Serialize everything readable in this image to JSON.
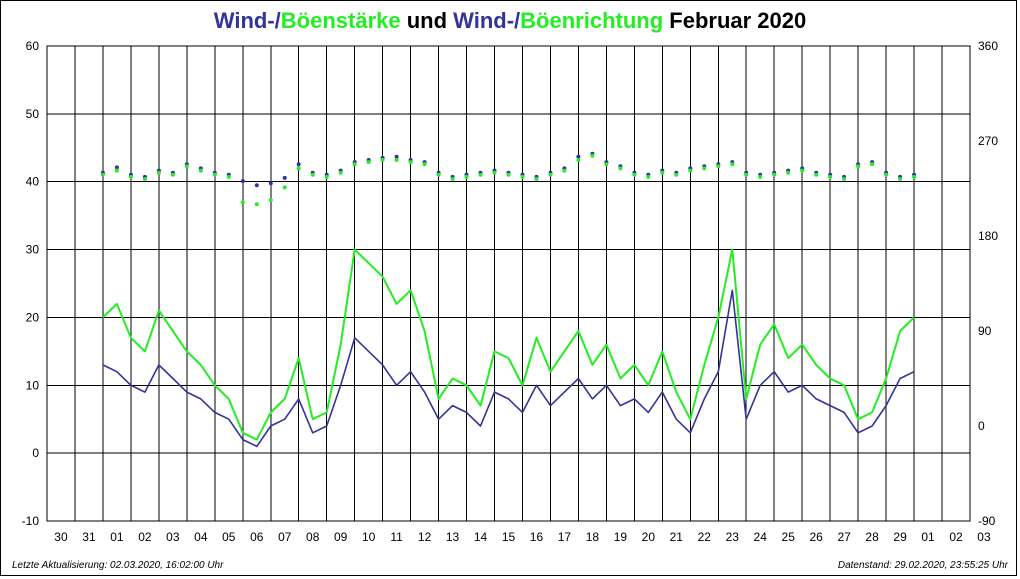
{
  "title": {
    "part1": "Wind-/",
    "part2": "Böenstärke",
    "part3": " und ",
    "part4": "Wind-/",
    "part5": "Böenrichtung",
    "part6": " Februar 2020"
  },
  "footer": {
    "left": "Letzte Aktualisierung: 02.03.2020, 16:02:00 Uhr",
    "right": "Datenstand: 29.02.2020, 23:55:25 Uhr"
  },
  "colors": {
    "wind": "#33339a",
    "gust": "#22ee22",
    "grid": "#000000"
  },
  "chart_data": {
    "type": "line",
    "x_tick_labels": [
      "30",
      "31",
      "01",
      "02",
      "03",
      "04",
      "05",
      "06",
      "07",
      "08",
      "09",
      "10",
      "11",
      "12",
      "13",
      "14",
      "15",
      "16",
      "17",
      "18",
      "19",
      "20",
      "21",
      "22",
      "23",
      "24",
      "25",
      "26",
      "27",
      "28",
      "29",
      "01",
      "02",
      "03"
    ],
    "y_left": {
      "lim": [
        -10,
        60
      ],
      "ticks": [
        -10,
        0,
        10,
        20,
        30,
        40,
        50,
        60
      ]
    },
    "y_right": {
      "lim": [
        -90,
        360
      ],
      "ticks": [
        -90,
        0,
        90,
        180,
        270,
        360
      ]
    },
    "grid": true,
    "series": [
      {
        "kind": "speed",
        "color": "#33339a",
        "x_days": [
          1,
          1.5,
          2,
          2.5,
          3,
          3.5,
          4,
          4.5,
          5,
          5.5,
          6,
          6.5,
          7,
          7.5,
          8,
          8.5,
          9,
          9.5,
          10,
          10.5,
          11,
          11.5,
          12,
          12.5,
          13,
          13.5,
          14,
          14.5,
          15,
          15.5,
          16,
          16.5,
          17,
          17.5,
          18,
          18.5,
          19,
          19.5,
          20,
          20.5,
          21,
          21.5,
          22,
          22.5,
          23,
          23.5,
          24,
          24.5,
          25,
          25.5,
          26,
          26.5,
          27,
          27.5,
          28,
          28.5,
          29,
          29.5,
          30
        ],
        "values": [
          13,
          12,
          10,
          9,
          13,
          11,
          9,
          8,
          6,
          5,
          2,
          1,
          4,
          5,
          8,
          3,
          4,
          10,
          17,
          15,
          13,
          10,
          12,
          9,
          5,
          7,
          6,
          4,
          9,
          8,
          6,
          10,
          7,
          9,
          11,
          8,
          10,
          7,
          8,
          6,
          9,
          5,
          3,
          8,
          12,
          24,
          5,
          10,
          12,
          9,
          10,
          8,
          7,
          6,
          3,
          4,
          7,
          11,
          12
        ]
      },
      {
        "kind": "gust",
        "color": "#22ee22",
        "x_days": [
          1,
          1.5,
          2,
          2.5,
          3,
          3.5,
          4,
          4.5,
          5,
          5.5,
          6,
          6.5,
          7,
          7.5,
          8,
          8.5,
          9,
          9.5,
          10,
          10.5,
          11,
          11.5,
          12,
          12.5,
          13,
          13.5,
          14,
          14.5,
          15,
          15.5,
          16,
          16.5,
          17,
          17.5,
          18,
          18.5,
          19,
          19.5,
          20,
          20.5,
          21,
          21.5,
          22,
          22.5,
          23,
          23.5,
          24,
          24.5,
          25,
          25.5,
          26,
          26.5,
          27,
          27.5,
          28,
          28.5,
          29,
          29.5,
          30
        ],
        "values": [
          20,
          22,
          17,
          15,
          21,
          18,
          15,
          13,
          10,
          8,
          3,
          2,
          6,
          8,
          14,
          5,
          6,
          16,
          30,
          28,
          26,
          22,
          24,
          18,
          8,
          11,
          10,
          7,
          15,
          14,
          10,
          17,
          12,
          15,
          18,
          13,
          16,
          11,
          13,
          10,
          15,
          9,
          5,
          13,
          20,
          30,
          8,
          16,
          19,
          14,
          16,
          13,
          11,
          10,
          5,
          6,
          11,
          18,
          20
        ]
      },
      {
        "kind": "wind-direction",
        "color": "#33339a",
        "x_days": [
          1,
          1.5,
          2,
          2.5,
          3,
          3.5,
          4,
          4.5,
          5,
          5.5,
          6,
          6.5,
          7,
          7.5,
          8,
          8.5,
          9,
          9.5,
          10,
          10.5,
          11,
          11.5,
          12,
          12.5,
          13,
          13.5,
          14,
          14.5,
          15,
          15.5,
          16,
          16.5,
          17,
          17.5,
          18,
          18.5,
          19,
          19.5,
          20,
          20.5,
          21,
          21.5,
          22,
          22.5,
          23,
          23.5,
          24,
          24.5,
          25,
          25.5,
          26,
          26.5,
          27,
          27.5,
          28,
          28.5,
          29,
          29.5,
          30
        ],
        "values": [
          240,
          245,
          238,
          236,
          242,
          240,
          248,
          244,
          240,
          238,
          232,
          228,
          230,
          235,
          248,
          240,
          238,
          242,
          250,
          252,
          254,
          255,
          252,
          250,
          240,
          236,
          238,
          240,
          242,
          240,
          238,
          236,
          240,
          244,
          255,
          258,
          250,
          246,
          240,
          238,
          242,
          240,
          244,
          246,
          248,
          250,
          240,
          238,
          240,
          242,
          244,
          240,
          238,
          236,
          248,
          250,
          240,
          236,
          238
        ]
      },
      {
        "kind": "gust-direction",
        "color": "#22ee22",
        "x_days": [
          1,
          1.5,
          2,
          2.5,
          3,
          3.5,
          4,
          4.5,
          5,
          5.5,
          6,
          6.5,
          7,
          7.5,
          8,
          8.5,
          9,
          9.5,
          10,
          10.5,
          11,
          11.5,
          12,
          12.5,
          13,
          13.5,
          14,
          14.5,
          15,
          15.5,
          16,
          16.5,
          17,
          17.5,
          18,
          18.5,
          19,
          19.5,
          20,
          20.5,
          21,
          21.5,
          22,
          22.5,
          23,
          23.5,
          24,
          24.5,
          25,
          25.5,
          26,
          26.5,
          27,
          27.5,
          28,
          28.5,
          29,
          29.5,
          30
        ],
        "values": [
          238,
          242,
          236,
          234,
          240,
          238,
          246,
          242,
          238,
          236,
          212,
          210,
          214,
          226,
          244,
          238,
          236,
          240,
          248,
          250,
          252,
          252,
          250,
          248,
          238,
          234,
          236,
          238,
          240,
          238,
          236,
          234,
          238,
          242,
          252,
          256,
          248,
          244,
          238,
          236,
          240,
          238,
          242,
          244,
          246,
          248,
          238,
          236,
          238,
          240,
          242,
          238,
          236,
          234,
          246,
          248,
          238,
          234,
          236
        ]
      }
    ]
  }
}
